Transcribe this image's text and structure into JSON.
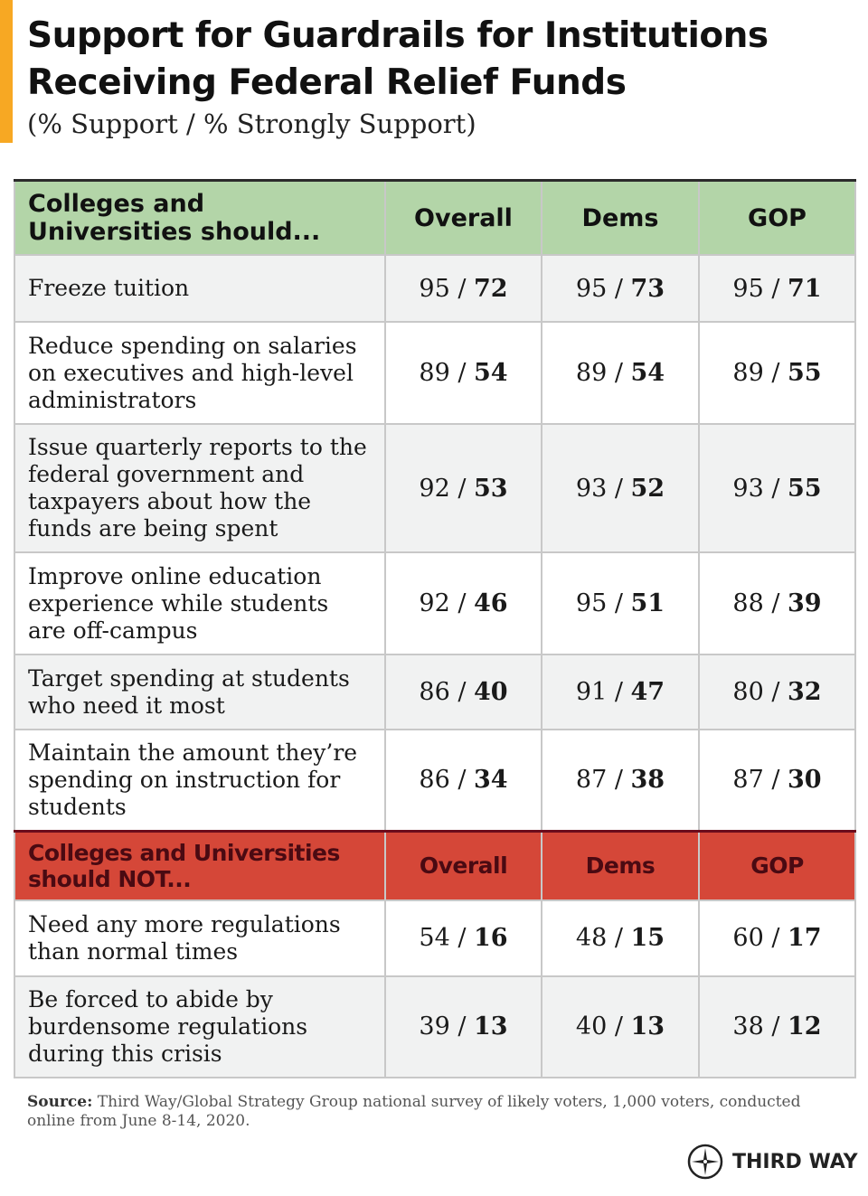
{
  "title_line1": "Support for Guardrails for Institutions",
  "title_line2": "Receiving Federal Relief Funds",
  "subtitle": "(% Support / % Strongly Support)",
  "colors": {
    "accent": "#f7a823",
    "support_header": "#b3d5a8",
    "oppose_header": "#d54738"
  },
  "chart_data": {
    "type": "table",
    "columns": [
      "Overall",
      "Dems",
      "GOP"
    ],
    "sections": [
      {
        "header": "Colleges and Universities should...",
        "rows": [
          {
            "item": "Freeze tuition",
            "values": [
              [
                "95",
                "72"
              ],
              [
                "95",
                "73"
              ],
              [
                "95",
                "71"
              ]
            ]
          },
          {
            "item": "Reduce spending on salaries on executives and high-level administrators",
            "values": [
              [
                "89",
                "54"
              ],
              [
                "89",
                "54"
              ],
              [
                "89",
                "55"
              ]
            ]
          },
          {
            "item": "Issue quarterly reports to the federal government and taxpayers about how the funds are being spent",
            "values": [
              [
                "92",
                "53"
              ],
              [
                "93",
                "52"
              ],
              [
                "93",
                "55"
              ]
            ]
          },
          {
            "item": "Improve online education experience while students are off-campus",
            "values": [
              [
                "92",
                "46"
              ],
              [
                "95",
                "51"
              ],
              [
                "88",
                "39"
              ]
            ]
          },
          {
            "item": "Target spending at students who need it most",
            "values": [
              [
                "86",
                "40"
              ],
              [
                "91",
                "47"
              ],
              [
                "80",
                "32"
              ]
            ]
          },
          {
            "item": "Maintain the amount they’re spending on instruction for students",
            "values": [
              [
                "86",
                "34"
              ],
              [
                "87",
                "38"
              ],
              [
                "87",
                "30"
              ]
            ]
          }
        ]
      },
      {
        "header": "Colleges and Universities should NOT...",
        "rows": [
          {
            "item": "Need any more regulations than normal times",
            "values": [
              [
                "54",
                "16"
              ],
              [
                "48",
                "15"
              ],
              [
                "60",
                "17"
              ]
            ]
          },
          {
            "item": "Be forced to abide by burdensome regulations during this crisis",
            "values": [
              [
                "39",
                "13"
              ],
              [
                "40",
                "13"
              ],
              [
                "38",
                "12"
              ]
            ]
          }
        ]
      }
    ]
  },
  "source_label": "Source:",
  "source_text": " Third Way/Global Strategy Group national survey of likely voters, 1,000 voters, conducted online from June 8-14, 2020.",
  "logo_text": "THIRD WAY"
}
